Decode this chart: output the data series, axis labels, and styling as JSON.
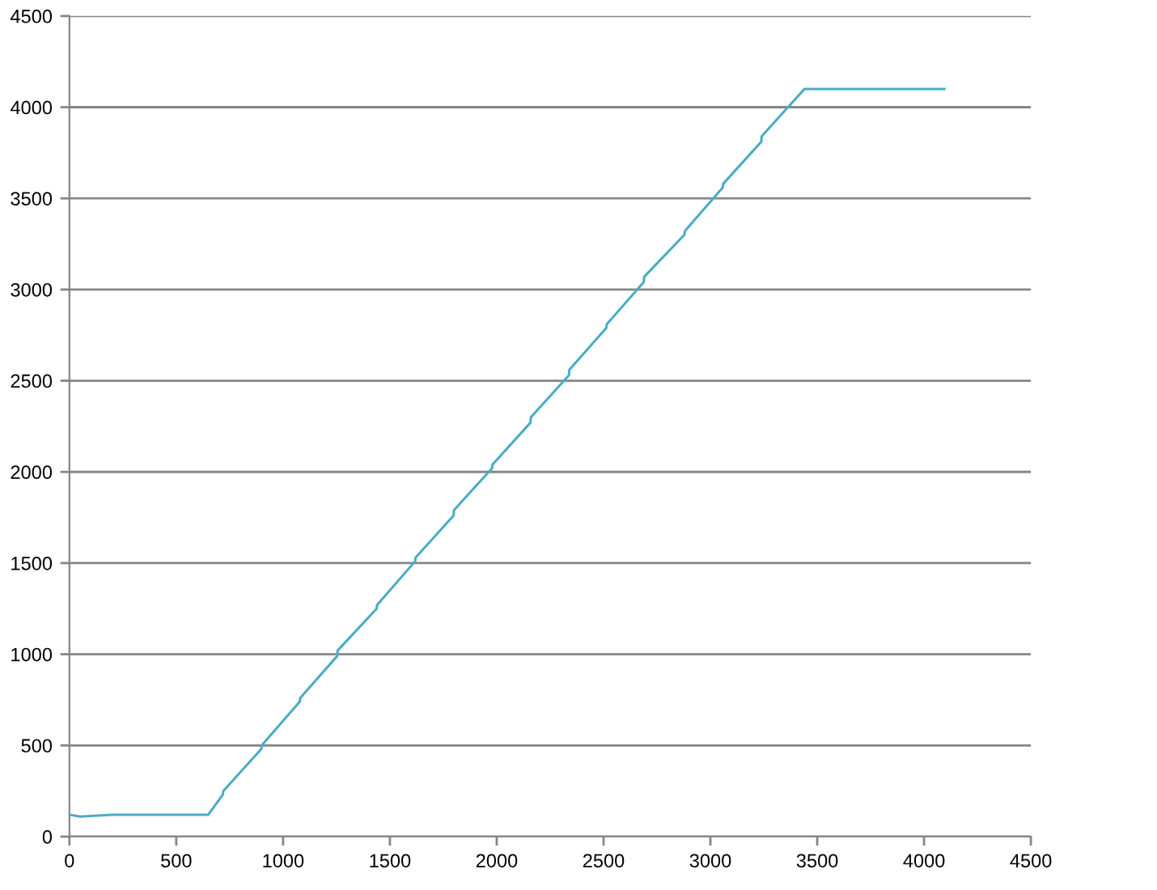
{
  "chart_data": {
    "type": "line",
    "x": [
      0,
      50,
      200,
      350,
      500,
      650,
      718,
      720,
      898,
      900,
      1078,
      1080,
      1253,
      1255,
      1438,
      1440,
      1618,
      1620,
      1798,
      1800,
      1978,
      1980,
      2158,
      2160,
      2338,
      2340,
      2513,
      2515,
      2688,
      2690,
      2878,
      2880,
      3058,
      3060,
      3238,
      3240,
      3440,
      4095
    ],
    "series": [
      {
        "color": "#4bacc6",
        "values": [
          120,
          110,
          120,
          120,
          120,
          120,
          230,
          250,
          480,
          500,
          740,
          760,
          990,
          1020,
          1250,
          1270,
          1510,
          1530,
          1760,
          1790,
          2020,
          2040,
          2270,
          2300,
          2530,
          2560,
          2790,
          2810,
          3040,
          3070,
          3300,
          3320,
          3560,
          3580,
          3810,
          3840,
          4100,
          4100
        ]
      }
    ],
    "xlim": [
      0,
      4500
    ],
    "ylim": [
      0,
      4500
    ],
    "xticks": [
      0,
      500,
      1000,
      1500,
      2000,
      2500,
      3000,
      3500,
      4000,
      4500
    ],
    "yticks": [
      0,
      500,
      1000,
      1500,
      2000,
      2500,
      3000,
      3500,
      4000,
      4500
    ],
    "grid": "y",
    "line_style": "solid"
  }
}
